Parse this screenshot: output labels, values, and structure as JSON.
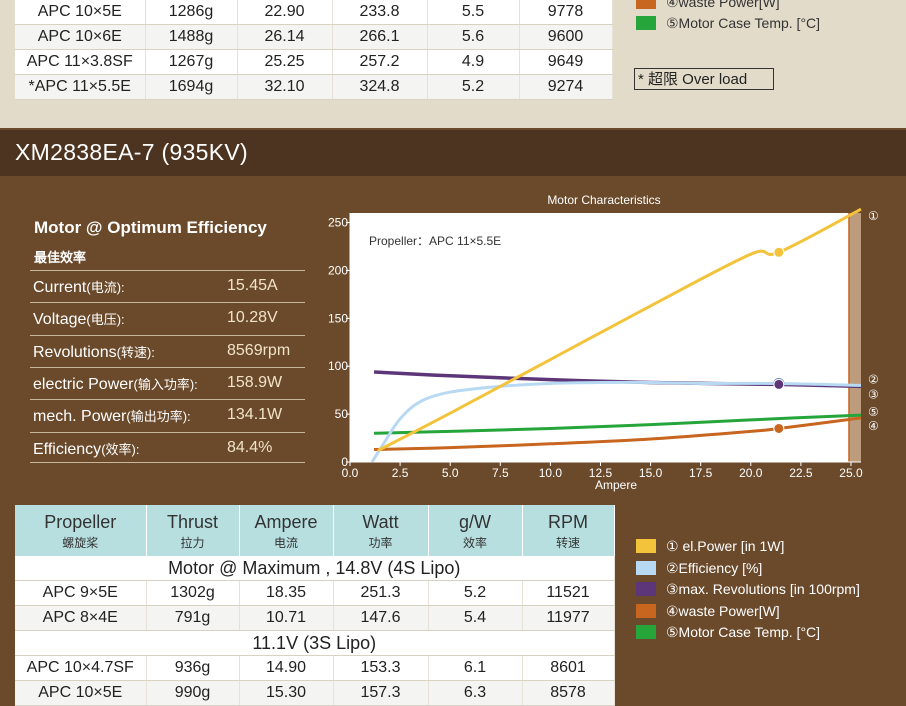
{
  "top_table": {
    "rows": [
      [
        "APC 10×5E",
        "1286g",
        "22.90",
        "233.8",
        "5.5",
        "9778"
      ],
      [
        "APC 10×6E",
        "1488g",
        "26.14",
        "266.1",
        "5.6",
        "9600"
      ],
      [
        "APC 11×3.8SF",
        "1267g",
        "25.25",
        "257.2",
        "4.9",
        "9649"
      ],
      [
        "*APC 11×5.5E",
        "1694g",
        "32.10",
        "324.8",
        "5.2",
        "9274"
      ]
    ]
  },
  "top_legend": [
    {
      "label": "④waste Power[W]",
      "color": "#c8651f"
    },
    {
      "label": "⑤Motor Case Temp. [°C]",
      "color": "#25a53a"
    }
  ],
  "overload_note": "* 超限 Over load",
  "section_title": "XM2838EA-7 (935KV)",
  "optimum": {
    "title": "Motor @ Optimum Efficiency",
    "subtitle": "最佳效率",
    "rows": [
      {
        "label": "Current",
        "label_cn": "(电流):",
        "value": "15.45A"
      },
      {
        "label": "Voltage",
        "label_cn": "(电压):",
        "value": "10.28V"
      },
      {
        "label": "Revolutions",
        "label_cn": "(转速):",
        "value": "8569rpm"
      },
      {
        "label": "electric Power",
        "label_cn": "(输入功率):",
        "value": "158.9W"
      },
      {
        "label": "mech. Power",
        "label_cn": "(输出功率):",
        "value": "134.1W"
      },
      {
        "label": "Efficiency",
        "label_cn": "(效率):",
        "value": "84.4%"
      }
    ]
  },
  "chart_data": {
    "type": "line",
    "title": "Motor Characteristics",
    "annotation": "Propeller：APC 11×5.5E",
    "xlabel": "Ampere",
    "ylabel": "",
    "xlim": [
      0,
      25.5
    ],
    "ylim": [
      0,
      260
    ],
    "xticks": [
      0,
      2.5,
      5,
      7.5,
      10,
      12.5,
      15,
      17.5,
      20,
      22.5,
      25
    ],
    "xtick_labels": [
      "0.0",
      "2.5",
      "5.0",
      "7.5",
      "10.0",
      "12.5",
      "15.0",
      "17.5",
      "20.0",
      "22.5",
      "25.0"
    ],
    "yticks": [
      0,
      50,
      100,
      150,
      200,
      250
    ],
    "ytick_labels": [
      "0",
      "50",
      "100",
      "150",
      "200",
      "250"
    ],
    "overload_from": 24.9,
    "marker_x": 21.4,
    "grid": false,
    "series": [
      {
        "name": "①",
        "color": "#f2c33b",
        "points": [
          [
            1.4,
            12
          ],
          [
            5,
            51
          ],
          [
            10,
            107
          ],
          [
            15,
            163
          ],
          [
            20,
            217
          ],
          [
            21.4,
            219
          ],
          [
            25.5,
            264
          ]
        ],
        "marker_y": 219
      },
      {
        "name": "②",
        "color": "#b7daf2",
        "points": [
          [
            1.1,
            0
          ],
          [
            1.7,
            20
          ],
          [
            2.5,
            45
          ],
          [
            3.5,
            63
          ],
          [
            5,
            73
          ],
          [
            7.5,
            79
          ],
          [
            10,
            82
          ],
          [
            12.5,
            83
          ],
          [
            15,
            83
          ],
          [
            17.5,
            82
          ],
          [
            21.4,
            82
          ],
          [
            25.5,
            80
          ]
        ],
        "marker_y": 82
      },
      {
        "name": "③",
        "color": "#5d3579",
        "points": [
          [
            1.2,
            94
          ],
          [
            5,
            90
          ],
          [
            10,
            86
          ],
          [
            15,
            83
          ],
          [
            21.4,
            81
          ],
          [
            25.5,
            79
          ]
        ],
        "marker_y": 81
      },
      {
        "name": "④",
        "color": "#c8651f",
        "points": [
          [
            1.2,
            13
          ],
          [
            5,
            15
          ],
          [
            10,
            19
          ],
          [
            15,
            24
          ],
          [
            20,
            32
          ],
          [
            21.4,
            35
          ],
          [
            25.5,
            46
          ]
        ],
        "marker_y": 35
      },
      {
        "name": "⑤",
        "color": "#25a53a",
        "points": [
          [
            1.2,
            30
          ],
          [
            5,
            32
          ],
          [
            10,
            35
          ],
          [
            15,
            39
          ],
          [
            20,
            44
          ],
          [
            25.5,
            49
          ]
        ]
      }
    ],
    "end_labels": [
      "①",
      "②",
      "③",
      "⑤",
      "④"
    ]
  },
  "bottom_table": {
    "headers": [
      {
        "en": "Propeller",
        "cn": "螺旋桨"
      },
      {
        "en": "Thrust",
        "cn": "拉力"
      },
      {
        "en": "Ampere",
        "cn": "电流"
      },
      {
        "en": "Watt",
        "cn": "功率"
      },
      {
        "en": "g/W",
        "cn": "效率"
      },
      {
        "en": "RPM",
        "cn": "转速"
      }
    ],
    "section1": "Motor @ Maximum , 14.8V (4S Lipo)",
    "rows1": [
      [
        "APC 9×5E",
        "1302g",
        "18.35",
        "251.3",
        "5.2",
        "11521"
      ],
      [
        "APC 8×4E",
        "791g",
        "10.71",
        "147.6",
        "5.4",
        "11977"
      ]
    ],
    "section2": "11.1V (3S Lipo)",
    "rows2": [
      [
        "APC 10×4.7SF",
        "936g",
        "14.90",
        "153.3",
        "6.1",
        "8601"
      ],
      [
        "APC 10×5E",
        "990g",
        "15.30",
        "157.3",
        "6.3",
        "8578"
      ]
    ]
  },
  "bottom_legend": [
    {
      "label": "① el.Power [in 1W]",
      "color": "#f2c33b"
    },
    {
      "label": "②Efficiency [%]",
      "color": "#b7daf2"
    },
    {
      "label": "③max. Revolutions [in 100rpm]",
      "color": "#5d3579"
    },
    {
      "label": "④waste Power[W]",
      "color": "#c8651f"
    },
    {
      "label": "⑤Motor Case Temp. [°C]",
      "color": "#25a53a"
    }
  ]
}
